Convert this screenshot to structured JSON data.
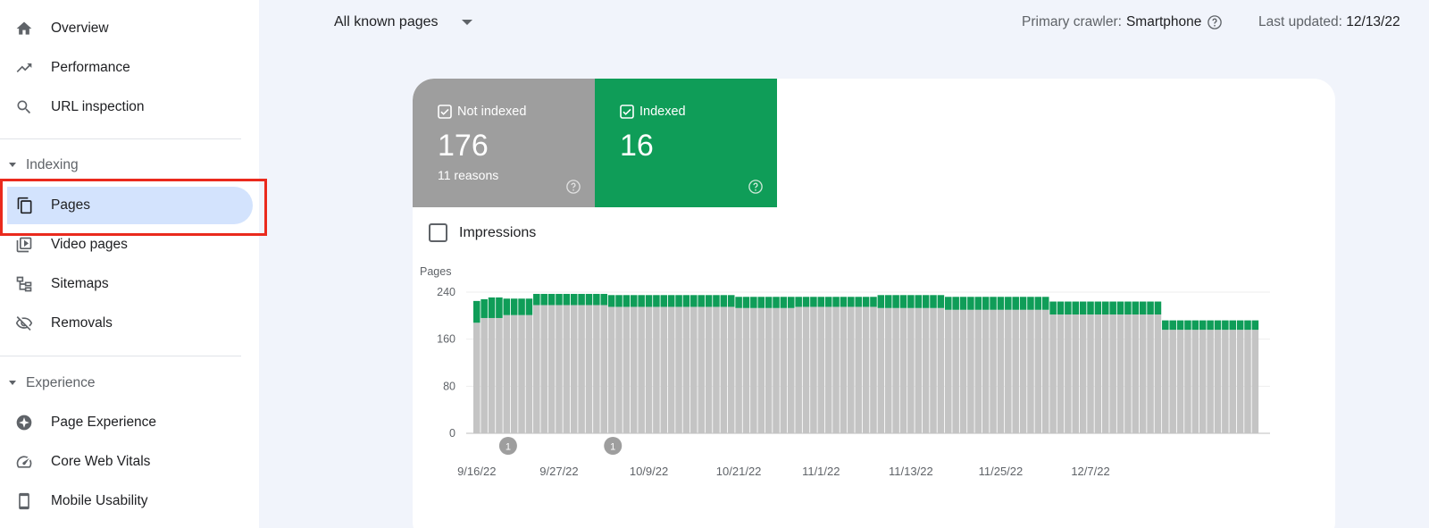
{
  "sidebar": {
    "items_top": [
      {
        "label": "Overview",
        "icon": "home-icon"
      },
      {
        "label": "Performance",
        "icon": "trending-up-icon"
      },
      {
        "label": "URL inspection",
        "icon": "search-icon"
      }
    ],
    "indexing": {
      "title": "Indexing",
      "items": [
        {
          "label": "Pages",
          "icon": "pages-icon",
          "active": true
        },
        {
          "label": "Video pages",
          "icon": "video-pages-icon"
        },
        {
          "label": "Sitemaps",
          "icon": "sitemap-icon"
        },
        {
          "label": "Removals",
          "icon": "removals-eye-off-icon"
        }
      ]
    },
    "experience": {
      "title": "Experience",
      "items": [
        {
          "label": "Page Experience",
          "icon": "page-experience-icon"
        },
        {
          "label": "Core Web Vitals",
          "icon": "gauge-icon"
        },
        {
          "label": "Mobile Usability",
          "icon": "smartphone-icon"
        }
      ]
    }
  },
  "header": {
    "filter_value": "All known pages",
    "crawler_label": "Primary crawler:",
    "crawler_value": "Smartphone",
    "updated_label": "Last updated:",
    "updated_value": "12/13/22"
  },
  "tiles": {
    "not_indexed": {
      "label": "Not indexed",
      "value": "176",
      "sub": "11 reasons"
    },
    "indexed": {
      "label": "Indexed",
      "value": "16"
    }
  },
  "impressions_label": "Impressions",
  "colors": {
    "not_indexed": "#9e9e9e",
    "indexed": "#0f9d58",
    "bar_grey": "#c4c4c4",
    "bar_green": "#0f9d58"
  },
  "chart_data": {
    "type": "bar",
    "stacked": true,
    "ylabel": "Pages",
    "y_ticks": [
      "240",
      "160",
      "80",
      "0"
    ],
    "ylim": [
      0,
      240
    ],
    "x_tick_labels": [
      "9/16/22",
      "9/27/22",
      "10/9/22",
      "10/21/22",
      "11/1/22",
      "11/13/22",
      "11/25/22",
      "12/7/22"
    ],
    "x_tick_indices": [
      0,
      11,
      23,
      35,
      46,
      58,
      70,
      82
    ],
    "annotations": [
      {
        "index": 3,
        "label": "1"
      },
      {
        "index": 17,
        "label": "1"
      }
    ],
    "series": [
      {
        "name": "Not indexed",
        "values": [
          188,
          196,
          196,
          196,
          201,
          201,
          201,
          201,
          218,
          218,
          218,
          218,
          218,
          218,
          218,
          218,
          218,
          218,
          215,
          215,
          215,
          215,
          215,
          215,
          215,
          215,
          215,
          215,
          215,
          215,
          215,
          215,
          215,
          215,
          215,
          213,
          213,
          213,
          213,
          213,
          213,
          213,
          213,
          215,
          215,
          215,
          215,
          215,
          215,
          215,
          215,
          215,
          215,
          215,
          213,
          213,
          213,
          213,
          213,
          213,
          213,
          213,
          213,
          210,
          210,
          210,
          210,
          210,
          210,
          210,
          210,
          210,
          210,
          210,
          210,
          210,
          210,
          202,
          202,
          202,
          202,
          202,
          202,
          202,
          202,
          202,
          202,
          202,
          202,
          202,
          202,
          202,
          176,
          176,
          176,
          176,
          176,
          176,
          176,
          176,
          176,
          176,
          176,
          176,
          176
        ]
      },
      {
        "name": "Indexed",
        "values": [
          37,
          32,
          35,
          35,
          28,
          28,
          28,
          28,
          19,
          19,
          19,
          19,
          19,
          19,
          19,
          19,
          19,
          19,
          20,
          20,
          20,
          20,
          20,
          20,
          20,
          20,
          20,
          20,
          20,
          20,
          20,
          20,
          20,
          20,
          20,
          19,
          19,
          19,
          19,
          19,
          19,
          19,
          19,
          17,
          17,
          17,
          17,
          17,
          17,
          17,
          17,
          17,
          17,
          17,
          22,
          22,
          22,
          22,
          22,
          22,
          22,
          22,
          22,
          22,
          22,
          22,
          22,
          22,
          22,
          22,
          22,
          22,
          22,
          22,
          22,
          22,
          22,
          22,
          22,
          22,
          22,
          22,
          22,
          22,
          22,
          22,
          22,
          22,
          22,
          22,
          22,
          22,
          16,
          16,
          16,
          16,
          16,
          16,
          16,
          16,
          16,
          16,
          16,
          16,
          16
        ]
      }
    ]
  }
}
